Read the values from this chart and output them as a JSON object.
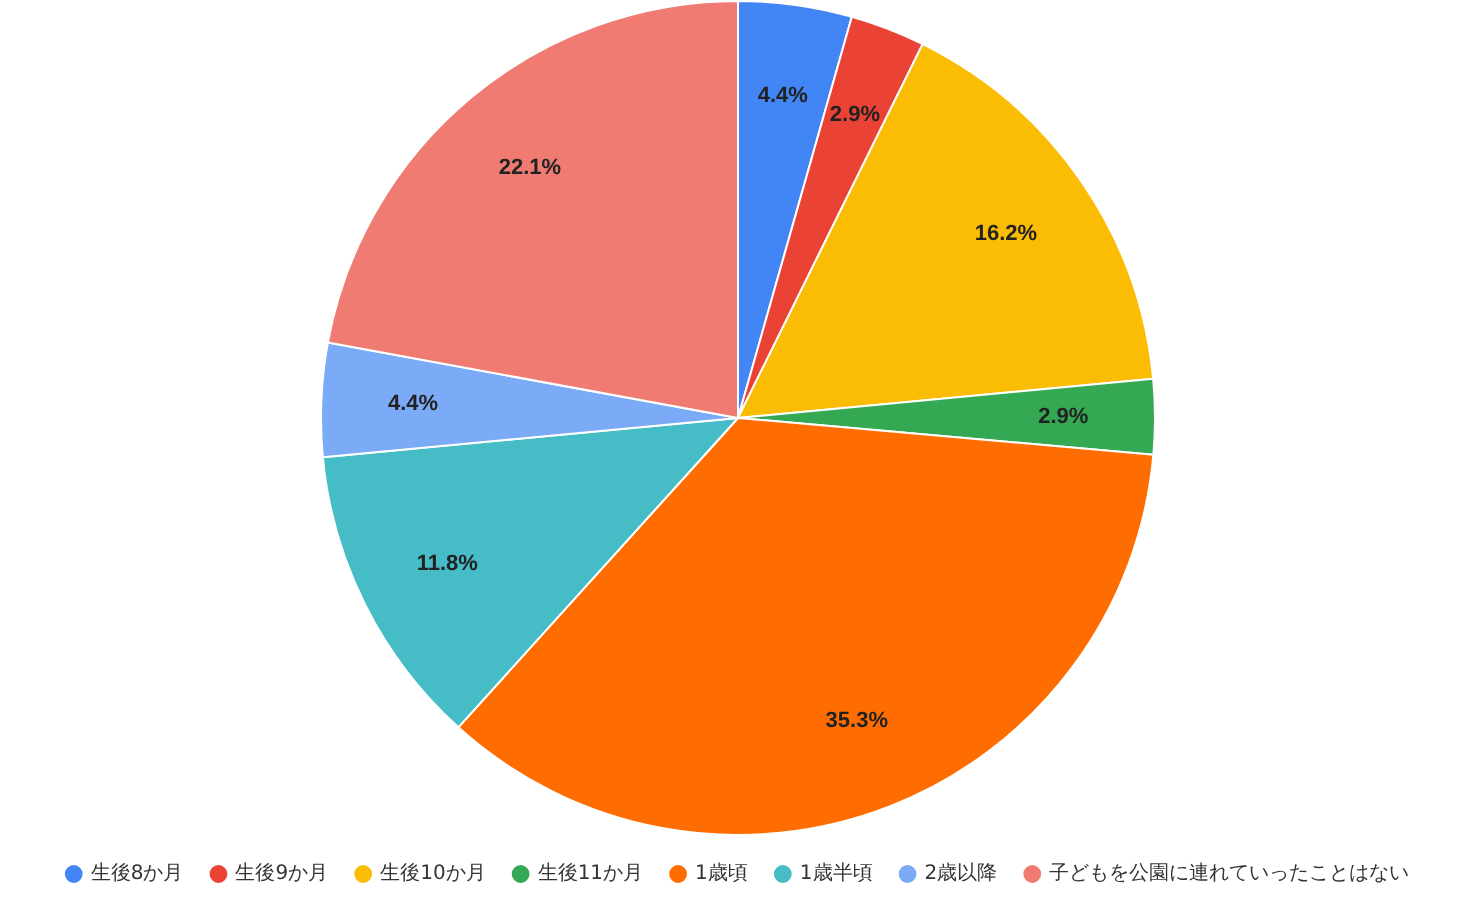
{
  "chart_data": {
    "type": "pie",
    "categories": [
      "生後8か月",
      "生後9か月",
      "生後10か月",
      "生後11か月",
      "1歳頃",
      "1歳半頃",
      "2歳以降",
      "子どもを公園に連れていったことはない"
    ],
    "values": [
      4.4,
      2.9,
      16.2,
      2.9,
      35.3,
      11.8,
      4.4,
      22.1
    ],
    "colors": [
      "#4285f4",
      "#ea4335",
      "#fbbc04",
      "#34a853",
      "#ff6d01",
      "#46bdc6",
      "#7baaf7",
      "#f07b72"
    ],
    "value_labels": [
      "4.4%",
      "2.9%",
      "16.2%",
      "2.9%",
      "35.3%",
      "11.8%",
      "4.4%",
      "22.1%"
    ],
    "legend": "bottom"
  }
}
